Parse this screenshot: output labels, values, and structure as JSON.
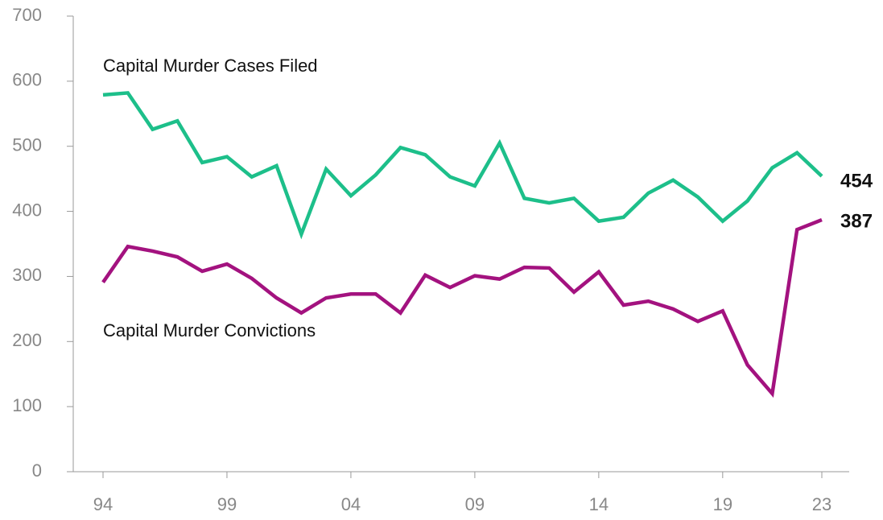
{
  "chart_data": {
    "type": "line",
    "categories": [
      "94",
      null,
      null,
      null,
      null,
      "99",
      null,
      null,
      null,
      null,
      "04",
      null,
      null,
      null,
      null,
      "09",
      null,
      null,
      null,
      null,
      "14",
      null,
      null,
      null,
      null,
      "19",
      null,
      null,
      null,
      "23"
    ],
    "series": [
      {
        "name": "Capital Murder Cases Filed",
        "color": "#1dbf8a",
        "values": [
          579,
          582,
          526,
          539,
          475,
          484,
          453,
          470,
          365,
          465,
          424,
          456,
          498,
          487,
          453,
          439,
          505,
          420,
          413,
          420,
          385,
          391,
          428,
          448,
          422,
          385,
          416,
          467,
          490,
          454
        ]
      },
      {
        "name": "Capital Murder Convictions",
        "color": "#a3127f",
        "values": [
          291,
          346,
          339,
          330,
          308,
          319,
          297,
          267,
          244,
          267,
          273,
          273,
          244,
          302,
          283,
          301,
          296,
          314,
          313,
          276,
          307,
          256,
          262,
          250,
          231,
          247,
          164,
          120,
          372,
          387
        ]
      }
    ],
    "ylim": [
      0,
      700
    ],
    "yticks": [
      0,
      100,
      200,
      300,
      400,
      500,
      600,
      700
    ],
    "end_labels": true
  }
}
